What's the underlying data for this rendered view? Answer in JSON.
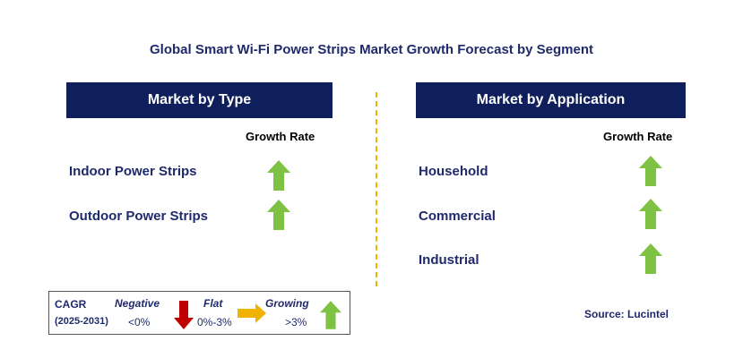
{
  "title": "Global Smart Wi-Fi Power Strips Market Growth Forecast by Segment",
  "colors": {
    "header_bg": "#0f1f5c",
    "text_navy": "#1f2a6b",
    "arrow_green": "#7dc242",
    "arrow_red": "#c00000",
    "arrow_yellow": "#f0b400",
    "divider": "#f0b400"
  },
  "type_panel": {
    "header": "Market by Type",
    "growth_rate_label": "Growth Rate",
    "segments": [
      {
        "label": "Indoor Power Strips",
        "trend": "growing"
      },
      {
        "label": "Outdoor Power Strips",
        "trend": "growing"
      }
    ]
  },
  "application_panel": {
    "header": "Market by Application",
    "growth_rate_label": "Growth Rate",
    "segments": [
      {
        "label": "Household",
        "trend": "growing"
      },
      {
        "label": "Commercial",
        "trend": "growing"
      },
      {
        "label": "Industrial",
        "trend": "growing"
      }
    ]
  },
  "legend": {
    "cagr": "CAGR",
    "years": "(2025-2031)",
    "negative_label": "Negative",
    "negative_range": "<0%",
    "flat_label": "Flat",
    "flat_range": "0%-3%",
    "growing_label": "Growing",
    "growing_range": ">3%"
  },
  "source": "Source: Lucintel"
}
